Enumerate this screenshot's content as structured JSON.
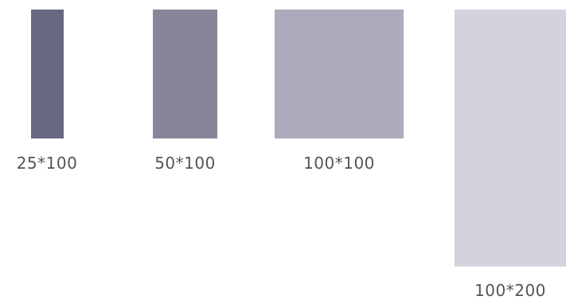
{
  "swatches": [
    {
      "label": "25*100",
      "color": "#676881"
    },
    {
      "label": "50*100",
      "color": "#868599"
    },
    {
      "label": "100*100",
      "color": "#acaabb"
    },
    {
      "label": "100*200",
      "color": "#d3d2dd"
    }
  ]
}
